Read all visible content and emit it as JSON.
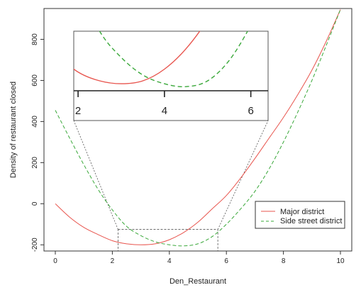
{
  "chart_data": {
    "type": "line",
    "xlabel": "Den_Restaurant",
    "ylabel": "Density of restaurant closed",
    "xlim": [
      0,
      10
    ],
    "ylim": [
      -230,
      950
    ],
    "x_ticks": [
      "0",
      "2",
      "4",
      "6",
      "8",
      "10"
    ],
    "y_ticks": [
      "-200",
      "0",
      "200",
      "400",
      "600",
      "800"
    ],
    "legend_position": "bottom-right",
    "series": [
      {
        "name": "Major district",
        "color": "#e8554e",
        "dash": "solid",
        "x": [
          0,
          0.5,
          1,
          1.5,
          2,
          2.5,
          3,
          3.5,
          4,
          4.5,
          5,
          5.5,
          6,
          6.5,
          7,
          7.5,
          8,
          8.5,
          9,
          9.5,
          10
        ],
        "y": [
          0,
          -65,
          -115,
          -150,
          -180,
          -195,
          -200,
          -195,
          -175,
          -140,
          -90,
          -25,
          40,
          125,
          220,
          320,
          420,
          530,
          650,
          790,
          945
        ]
      },
      {
        "name": "Side street district",
        "color": "#3aa83a",
        "dash": "dashed",
        "x": [
          0,
          0.5,
          1,
          1.5,
          2,
          2.5,
          3,
          3.5,
          4,
          4.5,
          5,
          5.5,
          6,
          6.5,
          7,
          7.5,
          8,
          8.5,
          9,
          9.5,
          10
        ],
        "y": [
          455,
          320,
          190,
          70,
          -30,
          -110,
          -155,
          -185,
          -200,
          -205,
          -195,
          -160,
          -100,
          -25,
          60,
          170,
          300,
          445,
          600,
          770,
          945
        ]
      }
    ],
    "zoom_region": {
      "xlim": [
        2.2,
        5.7
      ],
      "ylim": [
        -230,
        -125
      ]
    },
    "inset": {
      "x_ticks": [
        "2",
        "4",
        "6"
      ],
      "xlim": [
        1.9,
        6.4
      ],
      "ylim": [
        -212,
        -110
      ]
    }
  }
}
